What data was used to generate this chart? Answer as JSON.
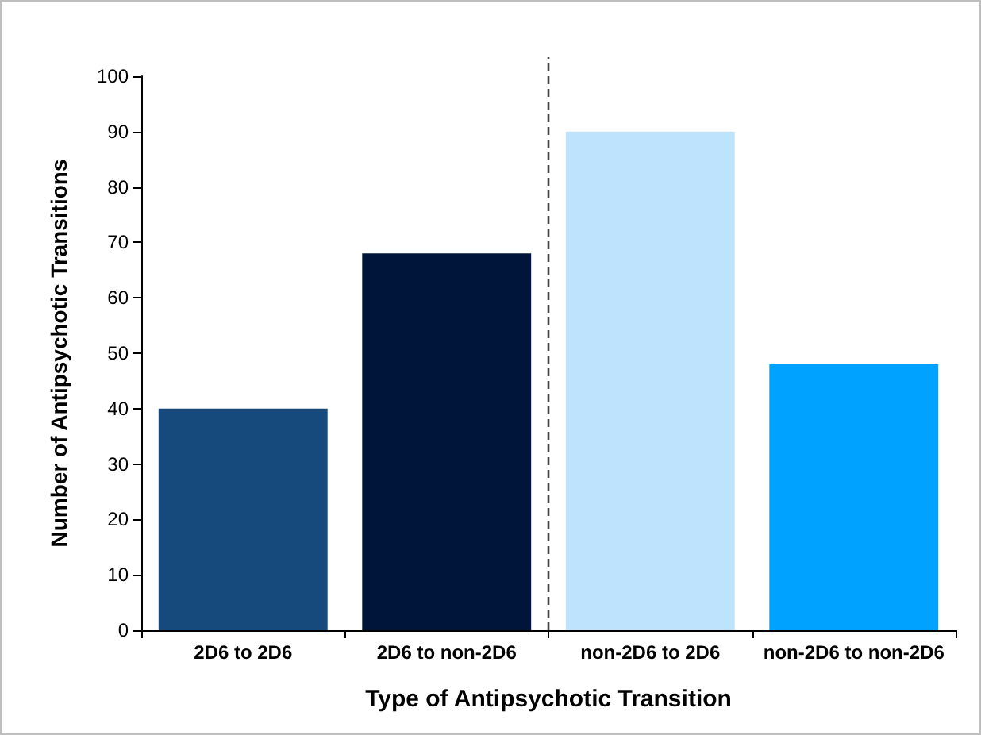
{
  "chart_data": {
    "type": "bar",
    "xlabel": "Type of Antipsychotic Transition",
    "ylabel": "Number of Antipsychotic Transitions",
    "categories": [
      "2D6 to 2D6",
      "2D6 to non-2D6",
      "non-2D6 to 2D6",
      "non-2D6 to non-2D6"
    ],
    "values": [
      40,
      68,
      90,
      48
    ],
    "colors": [
      "#174a7c",
      "#00153a",
      "#bde4fc",
      "#00a2ff"
    ],
    "ylim": [
      0,
      100
    ],
    "yticks": [
      0,
      10,
      20,
      30,
      40,
      50,
      60,
      70,
      80,
      90,
      100
    ],
    "grid": false
  }
}
